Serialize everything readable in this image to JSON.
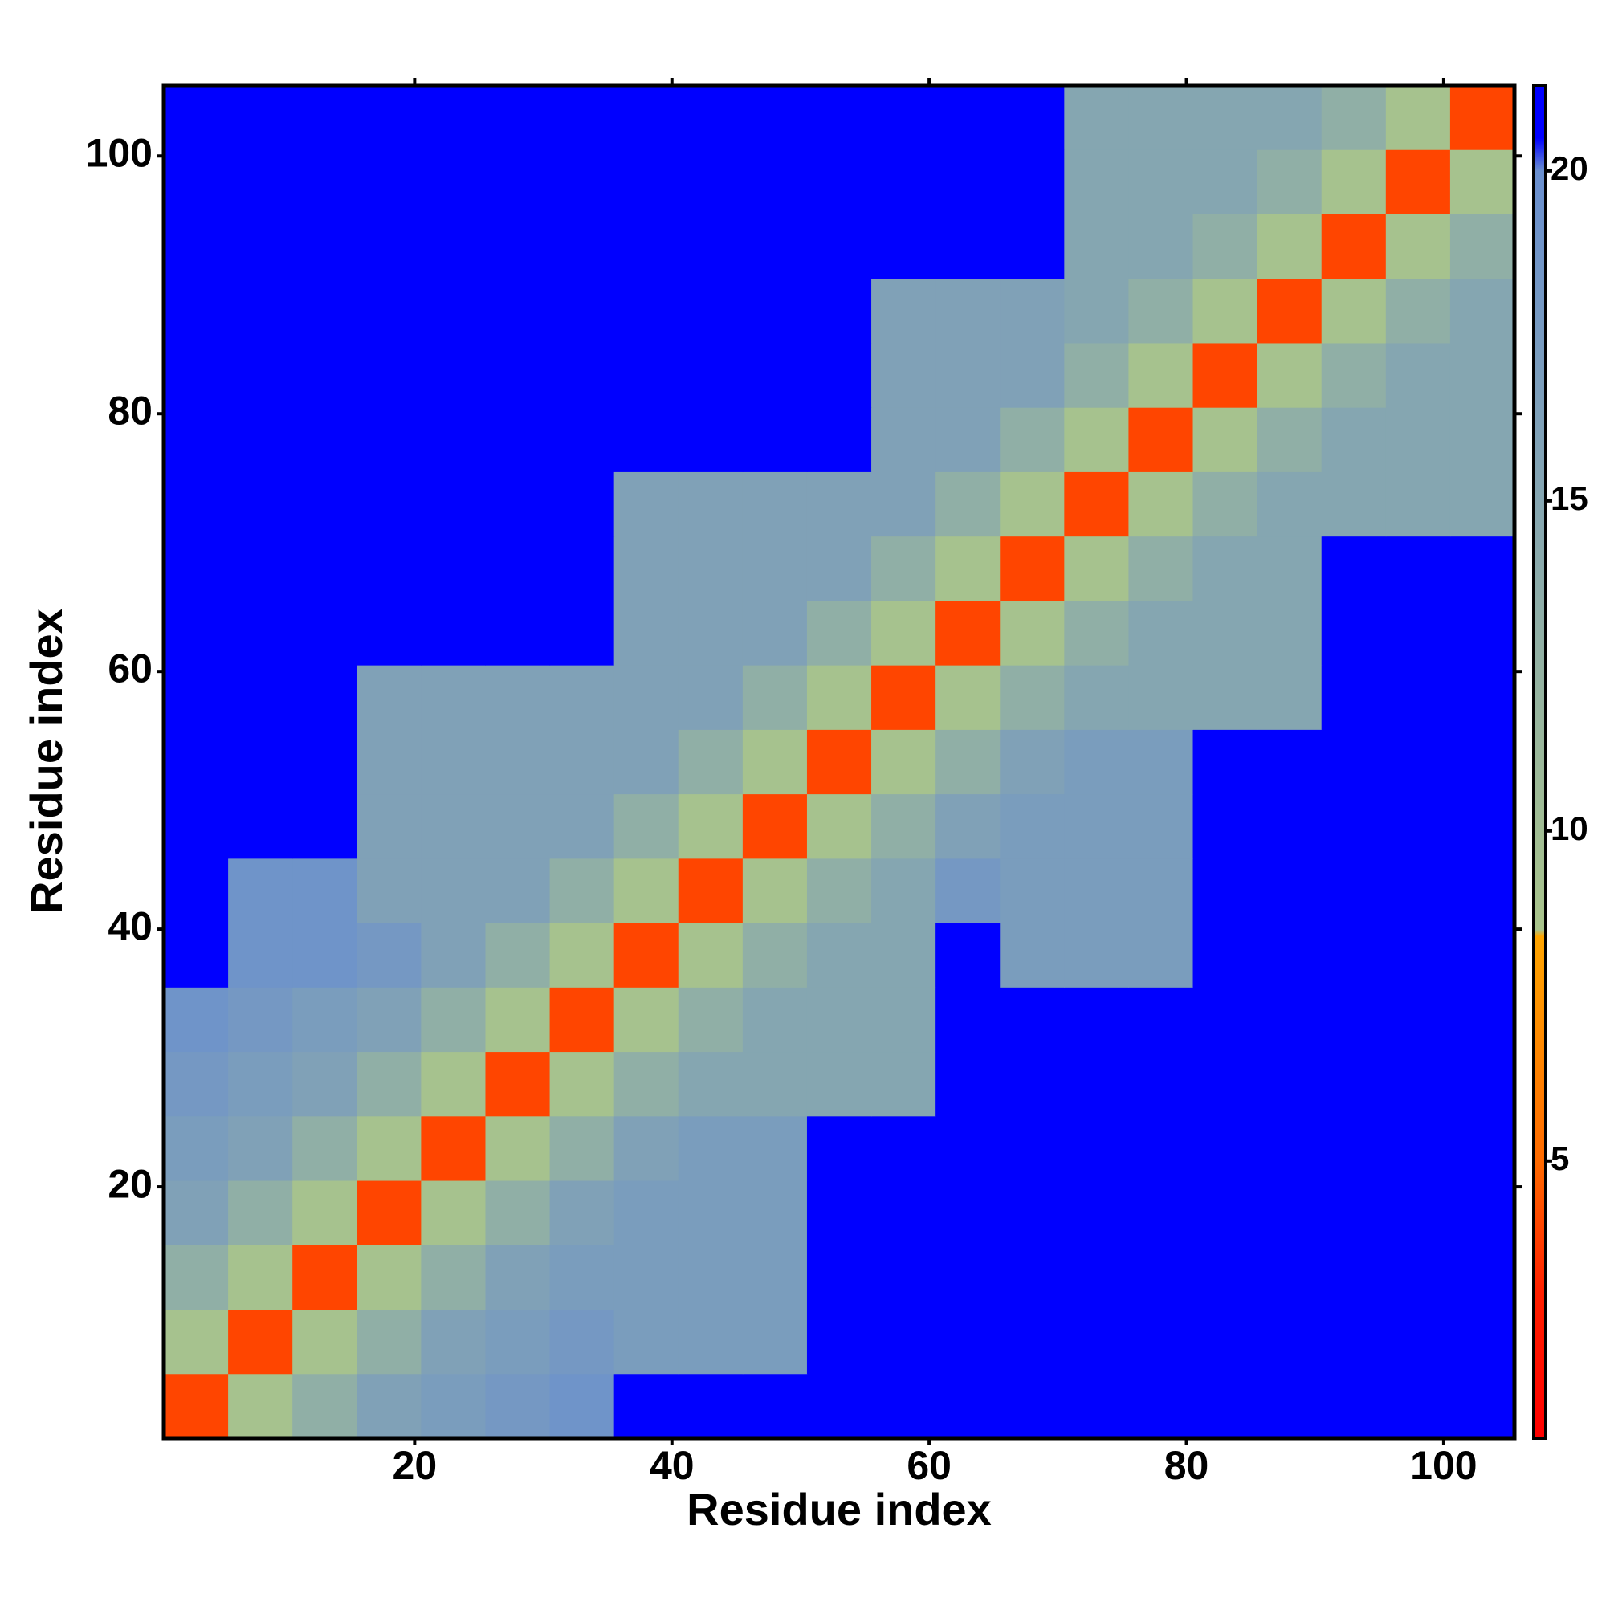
{
  "chart_data": {
    "type": "heatmap",
    "xlabel": "Residue index",
    "ylabel": "Residue index",
    "xbins": [
      0.5,
      5.5,
      10.5,
      15.5,
      20.5,
      25.5,
      30.5,
      35.5,
      40.5,
      45.5,
      50.5,
      55.5,
      60.5,
      65.5,
      70.5,
      75.5,
      80.5,
      85.5,
      90.5,
      95.5,
      100.5,
      105.5
    ],
    "ybins": [
      0.5,
      5.5,
      10.5,
      15.5,
      20.5,
      25.5,
      30.5,
      35.5,
      40.5,
      45.5,
      50.5,
      55.5,
      60.5,
      65.5,
      70.5,
      75.5,
      80.5,
      85.5,
      90.5,
      95.5,
      100.5,
      105.5
    ],
    "xlim": [
      0.5,
      105.5
    ],
    "ylim": [
      0.5,
      105.5
    ],
    "xticks": [
      20,
      40,
      60,
      80,
      100
    ],
    "yticks": [
      20,
      40,
      60,
      80,
      100
    ],
    "clim": [
      0.8,
      21.3
    ],
    "cticks": [
      5,
      10,
      15,
      20
    ],
    "colorscale": [
      [
        0.8,
        "#ff0000"
      ],
      [
        3,
        "#ff2000"
      ],
      [
        5,
        "#ff6a00"
      ],
      [
        8.4,
        "#ffa500"
      ],
      [
        8.5,
        "#a9c48b"
      ],
      [
        20,
        "#6a8fcf"
      ],
      [
        20.5,
        "#0000ff"
      ]
    ],
    "values": [
      [
        4,
        9,
        13,
        16,
        17,
        18,
        19,
        21,
        21,
        21,
        21,
        21,
        21,
        21,
        21,
        21,
        21,
        21,
        21,
        21,
        21
      ],
      [
        9,
        4,
        9,
        13,
        16,
        17,
        18,
        17,
        17,
        17,
        21,
        21,
        21,
        21,
        21,
        21,
        21,
        21,
        21,
        21,
        21
      ],
      [
        13,
        9,
        4,
        9,
        13,
        16,
        17,
        17,
        17,
        17,
        21,
        21,
        21,
        21,
        21,
        21,
        21,
        21,
        21,
        21,
        21
      ],
      [
        16,
        13,
        9,
        4,
        9,
        13,
        16,
        17,
        17,
        17,
        21,
        21,
        21,
        21,
        21,
        21,
        21,
        21,
        21,
        21,
        21
      ],
      [
        17,
        16,
        13,
        9,
        4,
        9,
        13,
        16,
        17,
        17,
        21,
        21,
        21,
        21,
        21,
        21,
        21,
        21,
        21,
        21,
        21
      ],
      [
        18,
        17,
        16,
        13,
        9,
        4,
        9,
        13,
        15,
        15,
        15,
        15,
        21,
        21,
        21,
        21,
        21,
        21,
        21,
        21,
        21
      ],
      [
        19,
        18,
        17,
        16,
        13,
        9,
        4,
        9,
        13,
        15,
        15,
        15,
        21,
        21,
        21,
        21,
        21,
        21,
        21,
        21,
        21
      ],
      [
        21,
        19,
        19,
        18,
        16,
        13,
        9,
        4,
        9,
        13,
        15,
        15,
        21,
        17,
        17,
        17,
        21,
        21,
        21,
        21,
        21
      ],
      [
        21,
        19,
        19,
        16,
        16,
        16,
        13,
        9,
        4,
        9,
        13,
        15,
        18,
        17,
        17,
        17,
        21,
        21,
        21,
        21,
        21
      ],
      [
        21,
        21,
        21,
        16,
        16,
        16,
        16,
        13,
        9,
        4,
        9,
        13,
        16,
        17,
        17,
        17,
        21,
        21,
        21,
        21,
        21
      ],
      [
        21,
        21,
        21,
        16,
        16,
        16,
        16,
        16,
        13,
        9,
        4,
        9,
        13,
        16,
        17,
        17,
        21,
        21,
        21,
        21,
        21
      ],
      [
        21,
        21,
        21,
        16,
        16,
        16,
        16,
        16,
        16,
        13,
        9,
        4,
        9,
        13,
        15,
        15,
        15,
        15,
        21,
        21,
        21
      ],
      [
        21,
        21,
        21,
        21,
        21,
        21,
        21,
        16,
        16,
        16,
        13,
        9,
        4,
        9,
        13,
        15,
        15,
        15,
        21,
        21,
        21
      ],
      [
        21,
        21,
        21,
        21,
        21,
        21,
        21,
        16,
        16,
        16,
        16,
        13,
        9,
        4,
        9,
        13,
        15,
        15,
        21,
        21,
        21
      ],
      [
        21,
        21,
        21,
        21,
        21,
        21,
        21,
        16,
        16,
        16,
        16,
        16,
        13,
        9,
        4,
        9,
        13,
        15,
        15,
        15,
        15
      ],
      [
        21,
        21,
        21,
        21,
        21,
        21,
        21,
        21,
        21,
        21,
        21,
        16,
        16,
        13,
        9,
        4,
        9,
        13,
        15,
        15,
        15
      ],
      [
        21,
        21,
        21,
        21,
        21,
        21,
        21,
        21,
        21,
        21,
        21,
        16,
        16,
        16,
        13,
        9,
        4,
        9,
        13,
        15,
        15
      ],
      [
        21,
        21,
        21,
        21,
        21,
        21,
        21,
        21,
        21,
        21,
        21,
        16,
        16,
        16,
        15,
        13,
        9,
        4,
        9,
        13,
        15
      ],
      [
        21,
        21,
        21,
        21,
        21,
        21,
        21,
        21,
        21,
        21,
        21,
        21,
        21,
        21,
        15,
        15,
        13,
        9,
        4,
        9,
        13
      ],
      [
        21,
        21,
        21,
        21,
        21,
        21,
        21,
        21,
        21,
        21,
        21,
        21,
        21,
        21,
        15,
        15,
        15,
        13,
        9,
        4,
        9
      ],
      [
        21,
        21,
        21,
        21,
        21,
        21,
        21,
        21,
        21,
        21,
        21,
        21,
        21,
        21,
        15,
        15,
        15,
        15,
        13,
        9,
        4
      ]
    ]
  }
}
